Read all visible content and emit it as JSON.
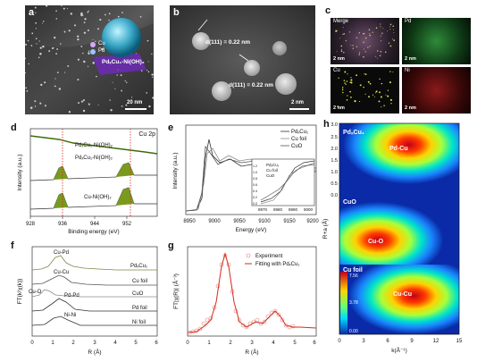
{
  "panels": {
    "a": {
      "label": "a",
      "legend_cu": "Cu",
      "legend_pd": "Pd",
      "composite": "PdₓCu₁-Ni(OH)₂",
      "scale": "20 nm"
    },
    "b": {
      "label": "b",
      "d1": "d(111) = 0.22 nm",
      "d2": "d(111) = 0.22 nm",
      "scale": "2 nm"
    },
    "c": {
      "label": "c",
      "maps": [
        "Merge",
        "Pd",
        "Cu",
        "Ni"
      ],
      "scale": "2 nm"
    },
    "d": {
      "label": "d",
      "corner": "Cu 2p",
      "xlabel": "Binding energy (eV)",
      "ylabel": "Intensity (a.u.)",
      "xticks": [
        "928",
        "936",
        "944",
        "952"
      ],
      "curves": [
        "PdₓCu₁-Ni(OH)₂",
        "PdₓCu₁-Ni(OH)₂",
        "Cu-Ni(OH)₂"
      ]
    },
    "e": {
      "label": "e",
      "xlabel": "Energy (eV)",
      "ylabel": "Intensity (a.u.)",
      "xticks": [
        "8950",
        "9000",
        "9050",
        "9100",
        "9150",
        "9200"
      ],
      "legend": [
        "PdₓCu₁",
        "Cu foil",
        "CuO"
      ],
      "inset_legend": [
        "PdₓCu₁",
        "Cu foil",
        "CuO"
      ],
      "inset_xticks": [
        "8970",
        "8980",
        "8990",
        "9000"
      ],
      "inset_yticks": [
        "0.0",
        "0.2",
        "0.4",
        "0.6",
        "0.8",
        "1.0",
        "1.2"
      ]
    },
    "f": {
      "label": "f",
      "xlabel": "R (Å)",
      "ylabel": "FT(k²χ(k))",
      "xticks": [
        "0",
        "1",
        "2",
        "3",
        "4",
        "5",
        "6"
      ],
      "series": [
        "PdₓCu₁",
        "Cu foil",
        "CuO",
        "Pd foil",
        "Ni foil"
      ],
      "annotations": [
        "Cu-Pd",
        "Cu-Cu",
        "Cu-O",
        "Pd-Pd",
        "Ni-Ni"
      ]
    },
    "g": {
      "label": "g",
      "xlabel": "R (Å)",
      "ylabel": "FT|χ(R)| (Å⁻³)",
      "xticks": [
        "0",
        "1",
        "2",
        "3",
        "4",
        "5",
        "6"
      ],
      "legend": [
        "Experiment",
        "Fitting with PdₓCu₁"
      ]
    },
    "h": {
      "label": "h",
      "ylabel": "R+a (Å)",
      "xlabel": "k(Å⁻¹)",
      "xticks": [
        "0",
        "3",
        "6",
        "9",
        "12",
        "15"
      ],
      "yticks": [
        "0.0",
        "0.5",
        "1.0",
        "1.5",
        "2.0",
        "2.5",
        "3.0"
      ],
      "maps": [
        {
          "title": "PdₓCu₁",
          "peak": "Pd-Cu"
        },
        {
          "title": "CuO",
          "peak": "Cu-O"
        },
        {
          "title": "Cu foil",
          "peak": "Cu-Cu"
        }
      ],
      "colorbar": [
        "7.56",
        "3.78",
        "0.00"
      ]
    }
  },
  "colors": {
    "green_fill": "#7a9a1e",
    "red_line": "#d62a1c",
    "dark_line": "#333333",
    "gray_line": "#8c8c8c"
  }
}
